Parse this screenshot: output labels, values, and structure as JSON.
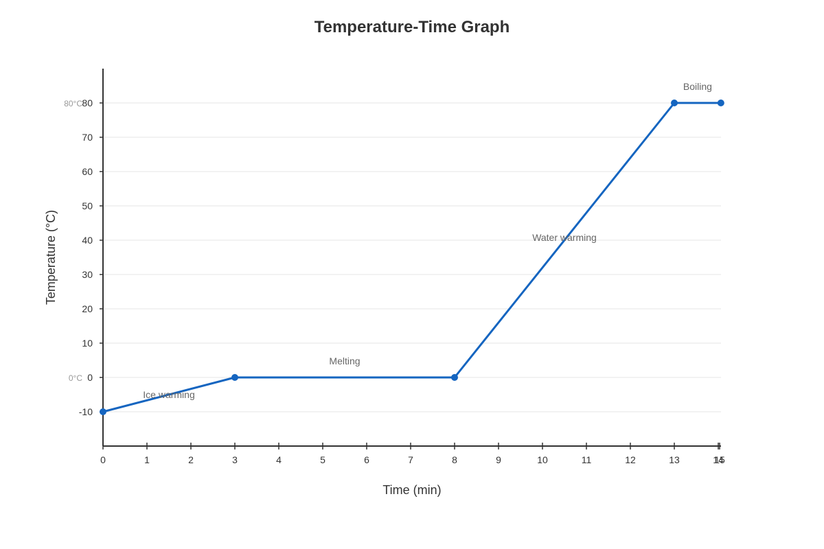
{
  "chart_data": {
    "type": "line",
    "title": "Temperature-Time Graph",
    "xlabel": "Time (min)",
    "ylabel": "Temperature (°C)",
    "xlim": [
      0,
      14.1
    ],
    "ylim": [
      -20,
      90
    ],
    "x_ticks": [
      0,
      1,
      2,
      3,
      4,
      5,
      6,
      7,
      8,
      9,
      10,
      11,
      12,
      13,
      14,
      15
    ],
    "y_ticks": [
      -10,
      0,
      10,
      20,
      30,
      40,
      50,
      60,
      70,
      80
    ],
    "grid": true,
    "series": [
      {
        "x": [
          0,
          3,
          8,
          13,
          14.06
        ],
        "y": [
          -10,
          0,
          0,
          80,
          80
        ],
        "color": "#1565c0"
      }
    ],
    "reference_labels": [
      {
        "y": 80,
        "text": "80°C"
      },
      {
        "y": 0,
        "text": "0°C"
      }
    ],
    "annotations": [
      {
        "text": "Ice warming",
        "x": 1.5,
        "y": -5
      },
      {
        "text": "Melting",
        "x": 5.5,
        "y": 4.8
      },
      {
        "text": "Water warming",
        "x": 10.5,
        "y": 40.8
      },
      {
        "text": "Boiling",
        "x": 13.53,
        "y": 84.8
      }
    ]
  }
}
